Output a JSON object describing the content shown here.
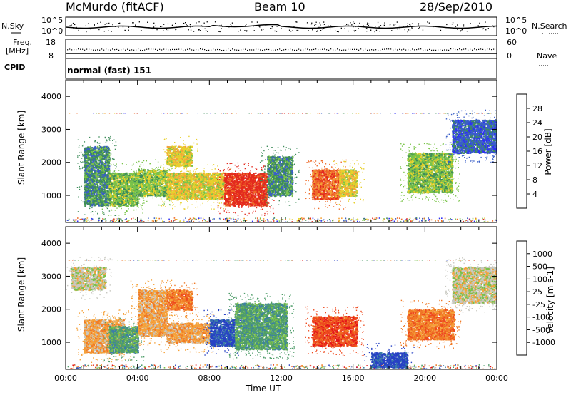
{
  "header": {
    "station": "McMurdo (fitACF)",
    "beam": "Beam 10",
    "date": "28/Sep/2010"
  },
  "top_panels": {
    "nsky_label": "N.Sky",
    "nsky_ticks": [
      "10^5",
      "10^0"
    ],
    "nsearch_label": "N.Search",
    "nsearch_ticks": [
      "10^5",
      "10^0"
    ],
    "freq_label_1": "Freq.",
    "freq_label_2": "[MHz]",
    "freq_ticks": [
      "18",
      "8"
    ],
    "nave_label": "Nave",
    "nave_ticks": [
      "60",
      "0"
    ],
    "cpid_label": "CPID",
    "cpid_value": "normal (fast) 151"
  },
  "chart_data": [
    {
      "type": "heatmap",
      "title": "",
      "xlabel": "",
      "ylabel": "Slant Range [km]",
      "ylim": [
        180,
        4500
      ],
      "yticks": [
        "4000",
        "3000",
        "2000",
        "1000"
      ],
      "xlim": [
        "00:00",
        "24:00"
      ],
      "colorbar": {
        "label": "Power [dB]",
        "ticks": [
          "28",
          "24",
          "20",
          "16",
          "12",
          "8",
          "4"
        ],
        "colors": [
          "#2e2ef5",
          "#3a5fc8",
          "#3e8c5a",
          "#7ac44a",
          "#e8d02c",
          "#f5a23a",
          "#ee6a28",
          "#e32a1e"
        ]
      },
      "echo_regions": [
        {
          "t0": 1.0,
          "t1": 2.4,
          "r0": 700,
          "r1": 2500,
          "level": 2
        },
        {
          "t0": 2.4,
          "t1": 4.0,
          "r0": 700,
          "r1": 1700,
          "level": 3
        },
        {
          "t0": 4.0,
          "t1": 5.6,
          "r0": 1000,
          "r1": 1800,
          "level": 3
        },
        {
          "t0": 5.6,
          "t1": 7.0,
          "r0": 1900,
          "r1": 2500,
          "level": 4
        },
        {
          "t0": 5.6,
          "t1": 8.8,
          "r0": 900,
          "r1": 1700,
          "level": 4
        },
        {
          "t0": 8.8,
          "t1": 11.2,
          "r0": 700,
          "r1": 1700,
          "level": 7
        },
        {
          "t0": 11.2,
          "t1": 12.6,
          "r0": 1000,
          "r1": 2200,
          "level": 2
        },
        {
          "t0": 13.7,
          "t1": 15.2,
          "r0": 900,
          "r1": 1800,
          "level": 6
        },
        {
          "t0": 15.2,
          "t1": 16.2,
          "r0": 1000,
          "r1": 1800,
          "level": 4
        },
        {
          "t0": 19.0,
          "t1": 21.5,
          "r0": 1100,
          "r1": 2300,
          "level": 3
        },
        {
          "t0": 21.5,
          "t1": 24.0,
          "r0": 2300,
          "r1": 3300,
          "level": 1
        }
      ]
    },
    {
      "type": "heatmap",
      "title": "",
      "xlabel": "Time UT",
      "ylabel": "Slant Range [km]",
      "ylim": [
        180,
        4500
      ],
      "yticks": [
        "4000",
        "3000",
        "2000",
        "1000"
      ],
      "xlim": [
        "00:00",
        "24:00"
      ],
      "xticks": [
        "00:00",
        "04:00",
        "08:00",
        "12:00",
        "16:00",
        "20:00",
        "00:00"
      ],
      "colorbar": {
        "label": "Velocity [m s-1]",
        "ticks": [
          "1000",
          "500",
          "100",
          "25",
          "-25",
          "-100",
          "-500",
          "-1000"
        ],
        "colors": [
          "#2742c4",
          "#3c7fa6",
          "#4f9d6a",
          "#7bc04a",
          "#c8c8c0",
          "#f5a23a",
          "#f07a26",
          "#ee4a1e",
          "#e3141a"
        ]
      },
      "echo_regions": [
        {
          "t0": 0.3,
          "t1": 2.2,
          "r0": 2600,
          "r1": 3300,
          "level": 4
        },
        {
          "t0": 1.0,
          "t1": 3.2,
          "r0": 700,
          "r1": 1700,
          "level": 5
        },
        {
          "t0": 2.4,
          "t1": 4.0,
          "r0": 700,
          "r1": 1500,
          "level": 2
        },
        {
          "t0": 4.0,
          "t1": 5.6,
          "r0": 1200,
          "r1": 2600,
          "level": 5
        },
        {
          "t0": 5.6,
          "t1": 7.0,
          "r0": 2000,
          "r1": 2600,
          "level": 6
        },
        {
          "t0": 5.6,
          "t1": 8.0,
          "r0": 1000,
          "r1": 1600,
          "level": 5
        },
        {
          "t0": 8.0,
          "t1": 9.4,
          "r0": 900,
          "r1": 1700,
          "level": 0
        },
        {
          "t0": 9.4,
          "t1": 12.3,
          "r0": 800,
          "r1": 2200,
          "level": 2
        },
        {
          "t0": 13.7,
          "t1": 16.2,
          "r0": 900,
          "r1": 1800,
          "level": 7
        },
        {
          "t0": 17.0,
          "t1": 19.0,
          "r0": 250,
          "r1": 700,
          "level": 0
        },
        {
          "t0": 19.0,
          "t1": 21.6,
          "r0": 1100,
          "r1": 2000,
          "level": 6
        },
        {
          "t0": 21.5,
          "t1": 24.0,
          "r0": 2200,
          "r1": 3300,
          "level": 4
        }
      ]
    }
  ]
}
